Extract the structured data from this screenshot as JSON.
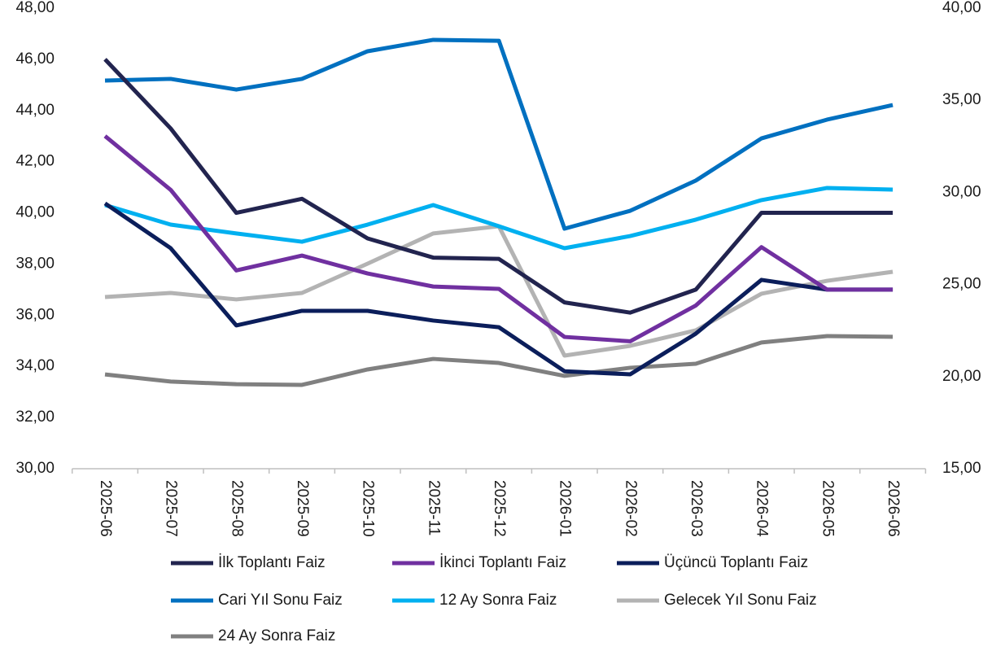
{
  "chart_data": {
    "type": "line",
    "categories": [
      "2025-06",
      "2025-07",
      "2025-08",
      "2025-09",
      "2025-10",
      "2025-11",
      "2025-12",
      "2026-01",
      "2026-02",
      "2026-03",
      "2026-04",
      "2026-05",
      "2026-06"
    ],
    "ylim": [
      30,
      48
    ],
    "yticks": [
      {
        "value": 30,
        "label": "30,00"
      },
      {
        "value": 32,
        "label": "32,00"
      },
      {
        "value": 34,
        "label": "34,00"
      },
      {
        "value": 36,
        "label": "36,00"
      },
      {
        "value": 38,
        "label": "38,00"
      },
      {
        "value": 40,
        "label": "40,00"
      },
      {
        "value": 42,
        "label": "42,00"
      },
      {
        "value": 44,
        "label": "44,00"
      },
      {
        "value": 46,
        "label": "46,00"
      },
      {
        "value": 48,
        "label": "48,00"
      }
    ],
    "y2lim": [
      15,
      40
    ],
    "y2ticks": [
      {
        "value": 15,
        "label": "15,00"
      },
      {
        "value": 20,
        "label": "20,00"
      },
      {
        "value": 25,
        "label": "25,00"
      },
      {
        "value": 30,
        "label": "30,00"
      },
      {
        "value": 35,
        "label": "35,00"
      },
      {
        "value": 40,
        "label": "40,00"
      }
    ],
    "legend": "bottom",
    "series": [
      {
        "name": "İlk Toplantı Faiz",
        "color": "#22244f",
        "values": [
          46.0,
          43.3,
          40.0,
          40.55,
          39.0,
          38.25,
          38.2,
          36.5,
          36.1,
          37.0,
          40.0,
          40.0,
          40.0
        ]
      },
      {
        "name": "İkinci Toplantı Faiz",
        "color": "#7030a0",
        "values": [
          43.0,
          40.9,
          37.75,
          38.33,
          37.63,
          37.12,
          37.03,
          35.15,
          34.98,
          36.38,
          38.66,
          37.0,
          37.0
        ]
      },
      {
        "name": "Üçüncü Toplantı Faiz",
        "color": "#0b1e5b",
        "values": [
          40.37,
          38.62,
          35.6,
          36.17,
          36.17,
          35.79,
          35.53,
          33.81,
          33.69,
          35.28,
          37.38,
          37.0,
          37.0
        ]
      },
      {
        "name": "Cari Yıl Sonu Faiz",
        "color": "#0070c0",
        "axis": "y2",
        "values": [
          36.07,
          36.16,
          35.58,
          36.16,
          37.66,
          38.28,
          38.23,
          28.03,
          29.0,
          30.64,
          32.93,
          33.95,
          34.74
        ]
      },
      {
        "name": "12 Ay Sonra Faiz",
        "color": "#00b0f0",
        "axis": "y2",
        "values": [
          29.31,
          28.25,
          27.77,
          27.32,
          28.25,
          29.31,
          28.16,
          26.97,
          27.63,
          28.52,
          29.58,
          30.24,
          30.15
        ]
      },
      {
        "name": "Gelecek Yıl Sonu Faiz",
        "color": "#b3b3b3",
        "axis": "y2",
        "values": [
          24.32,
          24.54,
          24.19,
          24.54,
          26.13,
          27.77,
          28.16,
          21.14,
          21.67,
          22.51,
          24.5,
          25.2,
          25.69
        ]
      },
      {
        "name": "24 Ay Sonra Faiz",
        "color": "#808080",
        "axis": "y2",
        "values": [
          20.12,
          19.73,
          19.59,
          19.55,
          20.39,
          20.96,
          20.74,
          20.04,
          20.48,
          20.7,
          21.85,
          22.2,
          22.16
        ]
      }
    ]
  }
}
